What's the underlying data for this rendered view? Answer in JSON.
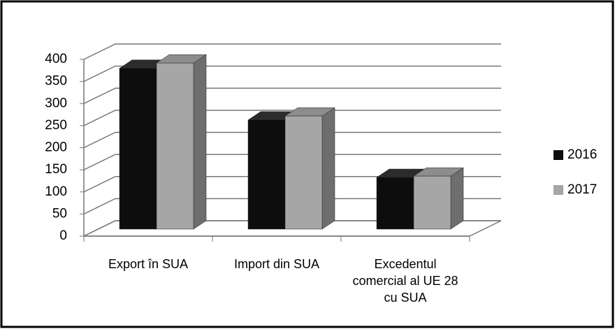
{
  "chart_data": {
    "type": "bar3d",
    "categories": [
      "Export în SUA",
      "Import din SUA",
      "Excedentul comercial al UE 28 cu SUA"
    ],
    "series": [
      {
        "name": "2016",
        "color": "#0d0d0d",
        "values": [
          364,
          247,
          117
        ]
      },
      {
        "name": "2017",
        "color": "#a6a6a6",
        "values": [
          376,
          256,
          120
        ]
      }
    ],
    "ylim": [
      0,
      400
    ],
    "yticks": [
      0,
      50,
      100,
      150,
      200,
      250,
      300,
      350,
      400
    ],
    "grid": true,
    "legend": "right"
  }
}
